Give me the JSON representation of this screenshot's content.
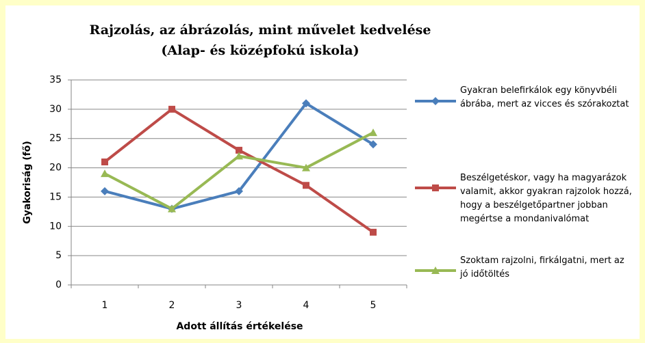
{
  "chart_data": {
    "type": "line",
    "title": "Rajzolás, az ábrázolás, mint művelet kedvelése",
    "subtitle": "(Alap-  és középfokú iskola)",
    "xlabel": "Adott állítás értékelése",
    "ylabel": "Gyakoriság (fő)",
    "categories": [
      "1",
      "2",
      "3",
      "4",
      "5"
    ],
    "series": [
      {
        "name": "Gyakran belefirkálok egy könyvbéli ábrába, mert az vicces és szórakoztat",
        "color": "#4a7ebb",
        "marker": "diamond",
        "values": [
          16,
          13,
          16,
          31,
          24
        ]
      },
      {
        "name": "Beszélgetéskor, vagy ha magyarázok valamit, akkor gyakran rajzolok hozzá, hogy a beszélgetőpartner jobban megértse a mondanivalómat",
        "color": "#be4b48",
        "marker": "square",
        "values": [
          21,
          30,
          23,
          17,
          9
        ]
      },
      {
        "name": "Szoktam rajzolni, firkálgatni, mert az jó időtöltés",
        "color": "#98b954",
        "marker": "triangle",
        "values": [
          19,
          13,
          22,
          20,
          26
        ]
      }
    ],
    "ylim": [
      0,
      35
    ],
    "yticks": [
      0,
      5,
      10,
      15,
      20,
      25,
      30,
      35
    ],
    "grid": true,
    "legend": "right"
  }
}
